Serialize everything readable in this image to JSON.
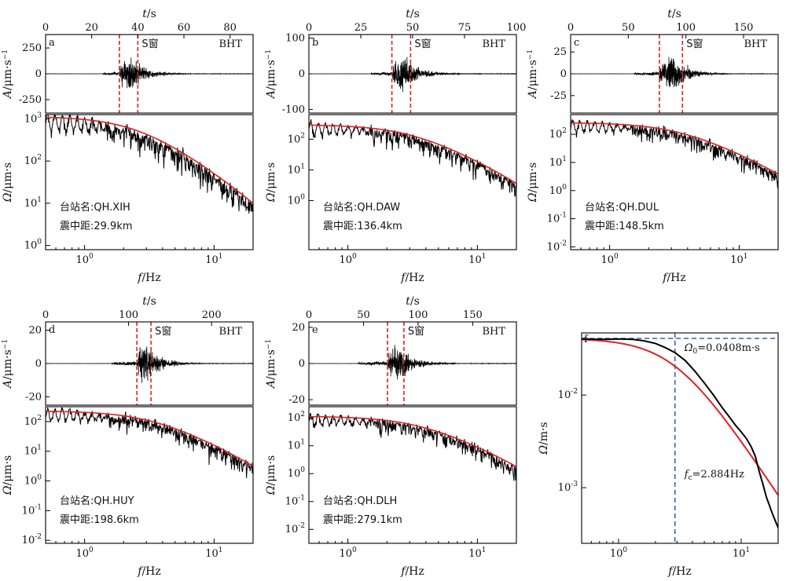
{
  "chart_data": [
    {
      "type": "line",
      "panel": "a",
      "waveform": {
        "xlabel": "t/s",
        "ylabel": "A/μm·s⁻¹",
        "xlim": [
          0,
          90
        ],
        "xticks": [
          0,
          20,
          40,
          60,
          80
        ],
        "yticks": [
          -250,
          0,
          250
        ],
        "ylim": [
          -380,
          380
        ],
        "p_onset": 25,
        "s_window": [
          32,
          40
        ],
        "amp": 310,
        "window_label": "S窗",
        "component": "BHT"
      },
      "spectrum": {
        "xlabel": "f/Hz",
        "ylabel": "Ω/μm·s",
        "xlim": [
          0.5,
          20
        ],
        "ylog": [
          -0.1,
          3.1
        ],
        "yticks": [
          0,
          1,
          2,
          3
        ],
        "station": "台站名:QH.XIH",
        "distance": "震中距:29.9km",
        "omega0": 1000,
        "fc": 2.5,
        "floor": 0.7
      }
    },
    {
      "type": "line",
      "panel": "b",
      "waveform": {
        "xlabel": "t/s",
        "ylabel": "A/μm·s⁻¹",
        "xlim": [
          0,
          100
        ],
        "xticks": [
          0,
          25,
          50,
          75,
          100
        ],
        "yticks": [
          -100,
          0,
          100
        ],
        "ylim": [
          -110,
          110
        ],
        "p_onset": 30,
        "s_window": [
          40,
          49
        ],
        "amp": 95,
        "window_label": "S窗",
        "component": "BHT"
      },
      "spectrum": {
        "xlabel": "f/Hz",
        "ylabel": "Ω/μm·s",
        "xlim": [
          0.5,
          20
        ],
        "ylog": [
          -1.6,
          2.8
        ],
        "yticks": [
          0,
          1,
          2
        ],
        "station": "台站名:QH.DAW",
        "distance": "震中距:136.4km",
        "omega0": 260,
        "fc": 3.0,
        "floor": 0.02
      }
    },
    {
      "type": "line",
      "panel": "c",
      "waveform": {
        "xlabel": "t/s",
        "ylabel": "A/μm·s⁻¹",
        "xlim": [
          0,
          180
        ],
        "xticks": [
          0,
          50,
          100,
          150
        ],
        "yticks": [
          -25,
          0,
          25
        ],
        "ylim": [
          -45,
          45
        ],
        "p_onset": 55,
        "s_window": [
          77,
          97
        ],
        "amp": 38,
        "window_label": "S窗",
        "component": "BHT"
      },
      "spectrum": {
        "xlabel": "f/Hz",
        "ylabel": "Ω/μm·s",
        "xlim": [
          0.5,
          20
        ],
        "ylog": [
          -2.1,
          2.7
        ],
        "yticks": [
          -2,
          -1,
          0,
          1,
          2
        ],
        "station": "台站名:QH.DUL",
        "distance": "震中距:148.5km",
        "omega0": 230,
        "fc": 3.3,
        "floor": 0.01
      }
    },
    {
      "type": "line",
      "panel": "d",
      "waveform": {
        "xlabel": "t/s",
        "ylabel": "A/μm·s⁻¹",
        "xlim": [
          0,
          250
        ],
        "xticks": [
          0,
          100,
          200
        ],
        "yticks": [
          -20,
          0,
          20
        ],
        "ylim": [
          -25,
          25
        ],
        "p_onset": 80,
        "s_window": [
          110,
          127
        ],
        "amp": 22,
        "window_label": "S窗",
        "component": "BHT"
      },
      "spectrum": {
        "xlabel": "f/Hz",
        "ylabel": "Ω/μm·s",
        "xlim": [
          0.5,
          20
        ],
        "ylog": [
          -2.1,
          2.5
        ],
        "yticks": [
          -2,
          -1,
          0,
          1,
          2
        ],
        "station": "台站名:QH.HUY",
        "distance": "震中距:198.6km",
        "omega0": 200,
        "fc": 3.2,
        "floor": 0.01
      }
    },
    {
      "type": "line",
      "panel": "e",
      "waveform": {
        "xlabel": "t/s",
        "ylabel": "A/μm·s⁻¹",
        "xlim": [
          0,
          190
        ],
        "xticks": [
          0,
          50,
          100,
          150
        ],
        "yticks": [
          -20,
          0,
          20
        ],
        "ylim": [
          -23,
          23
        ],
        "p_onset": 45,
        "s_window": [
          72,
          87
        ],
        "amp": 20,
        "window_label": "S窗",
        "component": "BHT"
      },
      "spectrum": {
        "xlabel": "f/Hz",
        "ylabel": "Ω/μm·s",
        "xlim": [
          0.5,
          20
        ],
        "ylog": [
          -2.5,
          2.4
        ],
        "yticks": [
          -2,
          -1,
          0,
          1,
          2
        ],
        "station": "台站名:QH.DLH",
        "distance": "震中距:279.1km",
        "omega0": 100,
        "fc": 3.4,
        "floor": 0.003
      }
    },
    {
      "type": "line",
      "panel": "f",
      "xlabel": "f/Hz",
      "ylabel": "Ω/m·s",
      "xlim": [
        0.5,
        20
      ],
      "ylog": [
        -3.6,
        -1.33
      ],
      "yticks": [
        -3,
        -2
      ],
      "omega0": 0.0408,
      "fc": 2.884,
      "omega0_label": "Ω₀=0.0408m·s",
      "fc_label": "fc=2.884Hz",
      "series": [
        {
          "name": "",
          "color": "#000000",
          "points": [
            [
              0.5,
              0.0404
            ],
            [
              0.6,
              0.04
            ],
            [
              0.8,
              0.0398
            ],
            [
              1.0,
              0.0402
            ],
            [
              1.3,
              0.0398
            ],
            [
              1.6,
              0.0385
            ],
            [
              2.0,
              0.036
            ],
            [
              2.4,
              0.0325
            ],
            [
              2.9,
              0.0285
            ],
            [
              3.5,
              0.0235
            ],
            [
              4.2,
              0.018
            ],
            [
              5.0,
              0.0135
            ],
            [
              6.0,
              0.0098
            ],
            [
              7.0,
              0.0073
            ],
            [
              8.0,
              0.0058
            ],
            [
              9.0,
              0.0047
            ],
            [
              10.0,
              0.004
            ],
            [
              11.0,
              0.0034
            ],
            [
              12.0,
              0.0028
            ],
            [
              13.0,
              0.0022
            ],
            [
              14.0,
              0.0015
            ],
            [
              15.0,
              0.0011
            ],
            [
              16.0,
              0.0008
            ],
            [
              18.0,
              0.00052
            ],
            [
              20.0,
              0.00037
            ]
          ]
        },
        {
          "name": "",
          "color": "#dd2222",
          "model": "brune",
          "omega0": 0.0408,
          "fc": 2.884
        }
      ]
    }
  ],
  "colors": {
    "data": "#000000",
    "fit": "#dd2222",
    "window": "#dd2222",
    "guide": "#1a3fa8"
  }
}
